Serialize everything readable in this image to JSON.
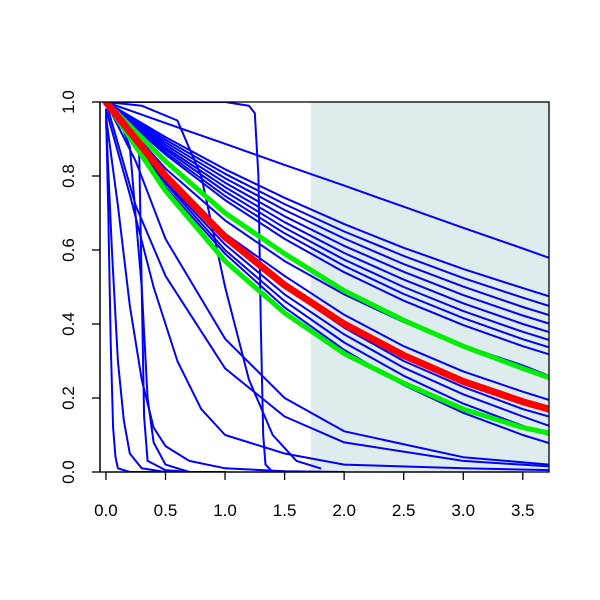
{
  "chart_data": {
    "type": "line",
    "title": "",
    "xlabel": "",
    "ylabel": "",
    "xlim": [
      -0.05,
      3.72
    ],
    "ylim": [
      0,
      1
    ],
    "x_ticks": [
      0,
      0.5,
      1,
      1.5,
      2,
      2.5,
      3,
      3.5
    ],
    "x_tick_labels": [
      "0.0",
      "0.5",
      "1.0",
      "1.5",
      "2.0",
      "2.5",
      "3.0",
      "3.5"
    ],
    "y_ticks": [
      0,
      0.2,
      0.4,
      0.6,
      0.8,
      1
    ],
    "y_tick_labels": [
      "0.0",
      "0.2",
      "0.4",
      "0.6",
      "0.8",
      "1.0"
    ],
    "grid": false,
    "legend": "none",
    "shaded_region": {
      "x_from": 1.72,
      "x_to": 3.72,
      "color": "#dfeced"
    },
    "colors": {
      "blue": "#0000ff",
      "green": "#00ee00",
      "red": "#ff0000"
    },
    "series": [
      {
        "color": "blue",
        "x": [
          0,
          0.5,
          1,
          1.5,
          2,
          2.5,
          3,
          3.5,
          3.72
        ],
        "y": [
          1,
          0.943,
          0.887,
          0.83,
          0.774,
          0.717,
          0.66,
          0.604,
          0.579
        ]
      },
      {
        "color": "blue",
        "x": [
          0,
          0.5,
          1,
          1.5,
          2,
          2.5,
          3,
          3.5,
          3.72
        ],
        "y": [
          1,
          0.905,
          0.818,
          0.741,
          0.67,
          0.606,
          0.549,
          0.497,
          0.475
        ]
      },
      {
        "color": "blue",
        "x": [
          0,
          0.5,
          1,
          1.5,
          2,
          2.5,
          3,
          3.5,
          3.72
        ],
        "y": [
          1,
          0.898,
          0.806,
          0.724,
          0.65,
          0.584,
          0.524,
          0.471,
          0.449
        ]
      },
      {
        "color": "blue",
        "x": [
          0,
          0.5,
          1,
          1.5,
          2,
          2.5,
          3,
          3.5,
          3.72
        ],
        "y": [
          1,
          0.891,
          0.794,
          0.708,
          0.631,
          0.562,
          0.501,
          0.446,
          0.424
        ]
      },
      {
        "color": "blue",
        "x": [
          0,
          0.5,
          1,
          1.5,
          2,
          2.5,
          3,
          3.5,
          3.72
        ],
        "y": [
          1,
          0.884,
          0.782,
          0.691,
          0.611,
          0.541,
          0.478,
          0.423,
          0.401
        ]
      },
      {
        "color": "blue",
        "x": [
          0,
          0.5,
          1,
          1.5,
          2,
          2.5,
          3,
          3.5,
          3.72
        ],
        "y": [
          1,
          0.877,
          0.77,
          0.675,
          0.592,
          0.52,
          0.456,
          0.4,
          0.378
        ]
      },
      {
        "color": "blue",
        "x": [
          0,
          0.5,
          1,
          1.5,
          2,
          2.5,
          3,
          3.5,
          3.72
        ],
        "y": [
          1,
          0.871,
          0.758,
          0.66,
          0.574,
          0.5,
          0.435,
          0.379,
          0.357
        ]
      },
      {
        "color": "blue",
        "x": [
          0,
          0.5,
          1,
          1.5,
          2,
          2.5,
          3,
          3.5,
          3.72
        ],
        "y": [
          1,
          0.864,
          0.746,
          0.645,
          0.557,
          0.481,
          0.416,
          0.359,
          0.337
        ]
      },
      {
        "color": "blue",
        "x": [
          0,
          0.5,
          1,
          1.5,
          2,
          2.5,
          3,
          3.5,
          3.72
        ],
        "y": [
          1,
          0.858,
          0.735,
          0.63,
          0.54,
          0.463,
          0.397,
          0.34,
          0.318
        ]
      },
      {
        "color": "blue",
        "x": [
          0,
          0.5,
          1,
          1.5,
          2,
          2.5,
          3,
          3.5,
          3.72
        ],
        "y": [
          1,
          0.82,
          0.68,
          0.57,
          0.48,
          0.405,
          0.342,
          0.288,
          0.26
        ]
      },
      {
        "color": "blue",
        "x": [
          0,
          0.5,
          1,
          1.5,
          2,
          2.5,
          3,
          3.5,
          3.72
        ],
        "y": [
          1,
          0.8,
          0.644,
          0.53,
          0.425,
          0.34,
          0.272,
          0.217,
          0.195
        ]
      },
      {
        "color": "blue",
        "x": [
          0,
          0.5,
          1,
          1.5,
          2,
          2.5,
          3,
          3.5,
          3.72
        ],
        "y": [
          1,
          0.79,
          0.63,
          0.5,
          0.39,
          0.3,
          0.23,
          0.17,
          0.15
        ]
      },
      {
        "color": "blue",
        "x": [
          0,
          0.5,
          1,
          1.5,
          2,
          2.5,
          3,
          3.5,
          3.72
        ],
        "y": [
          1,
          0.785,
          0.615,
          0.48,
          0.372,
          0.282,
          0.21,
          0.15,
          0.125
        ]
      },
      {
        "color": "blue",
        "x": [
          0,
          0.5,
          1,
          1.5,
          2,
          2.5,
          3,
          3.5,
          3.72
        ],
        "y": [
          1,
          0.78,
          0.6,
          0.462,
          0.35,
          0.26,
          0.185,
          0.125,
          0.1
        ]
      },
      {
        "color": "blue",
        "x": [
          0,
          0.5,
          1,
          1.5,
          2,
          2.5,
          3,
          3.5,
          3.72
        ],
        "y": [
          1,
          0.77,
          0.59,
          0.445,
          0.33,
          0.235,
          0.16,
          0.1,
          0.078
        ]
      },
      {
        "color": "blue",
        "x": [
          0,
          0.25,
          0.5,
          1,
          1.5,
          2,
          3,
          3.72
        ],
        "y": [
          1,
          0.72,
          0.53,
          0.28,
          0.15,
          0.08,
          0.03,
          0.015
        ]
      },
      {
        "color": "blue",
        "x": [
          0,
          0.25,
          0.5,
          1,
          1.5,
          2,
          3,
          3.72
        ],
        "y": [
          1,
          0.84,
          0.63,
          0.36,
          0.2,
          0.11,
          0.04,
          0.02
        ]
      },
      {
        "color": "blue",
        "x": [
          0,
          0.2,
          0.4,
          0.6,
          0.8,
          1,
          1.5,
          2,
          3,
          3.72
        ],
        "y": [
          0.98,
          0.75,
          0.5,
          0.3,
          0.17,
          0.1,
          0.05,
          0.02,
          0.01,
          0.005
        ]
      },
      {
        "color": "blue",
        "x": [
          0,
          0.1,
          0.2,
          0.3,
          0.4,
          0.5,
          0.7,
          1,
          1.5,
          2
        ],
        "y": [
          0.96,
          0.72,
          0.45,
          0.25,
          0.12,
          0.07,
          0.03,
          0.01,
          0.002,
          0
        ]
      },
      {
        "color": "blue",
        "x": [
          0,
          0.05,
          0.1,
          0.15,
          0.2,
          0.3,
          0.5,
          1
        ],
        "y": [
          0.95,
          0.6,
          0.3,
          0.14,
          0.05,
          0.01,
          0,
          0
        ]
      },
      {
        "color": "blue",
        "x": [
          0,
          0.02,
          0.04,
          0.06,
          0.08,
          0.1,
          0.2,
          0.5
        ],
        "y": [
          0.98,
          0.7,
          0.35,
          0.12,
          0.04,
          0.01,
          0,
          0
        ]
      },
      {
        "color": "blue",
        "x": [
          0,
          0.1,
          0.2,
          0.3,
          0.35,
          0.4,
          0.5,
          0.7
        ],
        "y": [
          1,
          0.96,
          0.88,
          0.5,
          0.2,
          0.08,
          0.02,
          0
        ]
      },
      {
        "color": "blue",
        "x": [
          0,
          0.3,
          0.6,
          0.8,
          1,
          1.2,
          1.4,
          1.6,
          1.8
        ],
        "y": [
          1,
          0.99,
          0.95,
          0.8,
          0.5,
          0.25,
          0.1,
          0.03,
          0.01
        ]
      },
      {
        "color": "blue",
        "x": [
          0,
          0.25,
          0.28,
          0.3,
          0.32,
          0.35,
          0.5,
          0.7
        ],
        "y": [
          1,
          0.95,
          0.85,
          0.5,
          0.15,
          0.03,
          0.005,
          0
        ]
      },
      {
        "color": "blue",
        "x": [
          0,
          0.5,
          1,
          1.2,
          1.25,
          1.28,
          1.3,
          1.32,
          1.34,
          1.4
        ],
        "y": [
          1,
          1,
          1,
          0.99,
          0.97,
          0.8,
          0.4,
          0.1,
          0.02,
          0
        ]
      },
      {
        "color": "green",
        "x": [
          0,
          0.5,
          1,
          1.5,
          2,
          2.5,
          3,
          3.5,
          3.72
        ],
        "y": [
          1,
          0.84,
          0.7,
          0.59,
          0.49,
          0.41,
          0.34,
          0.28,
          0.255
        ]
      },
      {
        "color": "green",
        "x": [
          0,
          0.5,
          1,
          1.5,
          2,
          2.5,
          3,
          3.5,
          3.72
        ],
        "y": [
          1,
          0.76,
          0.57,
          0.43,
          0.32,
          0.24,
          0.17,
          0.12,
          0.105
        ]
      },
      {
        "color": "red",
        "x": [
          0,
          0.5,
          1,
          1.5,
          2,
          2.5,
          3,
          3.5,
          3.72
        ],
        "y": [
          1,
          0.8,
          0.635,
          0.505,
          0.4,
          0.315,
          0.245,
          0.19,
          0.17
        ]
      }
    ]
  }
}
